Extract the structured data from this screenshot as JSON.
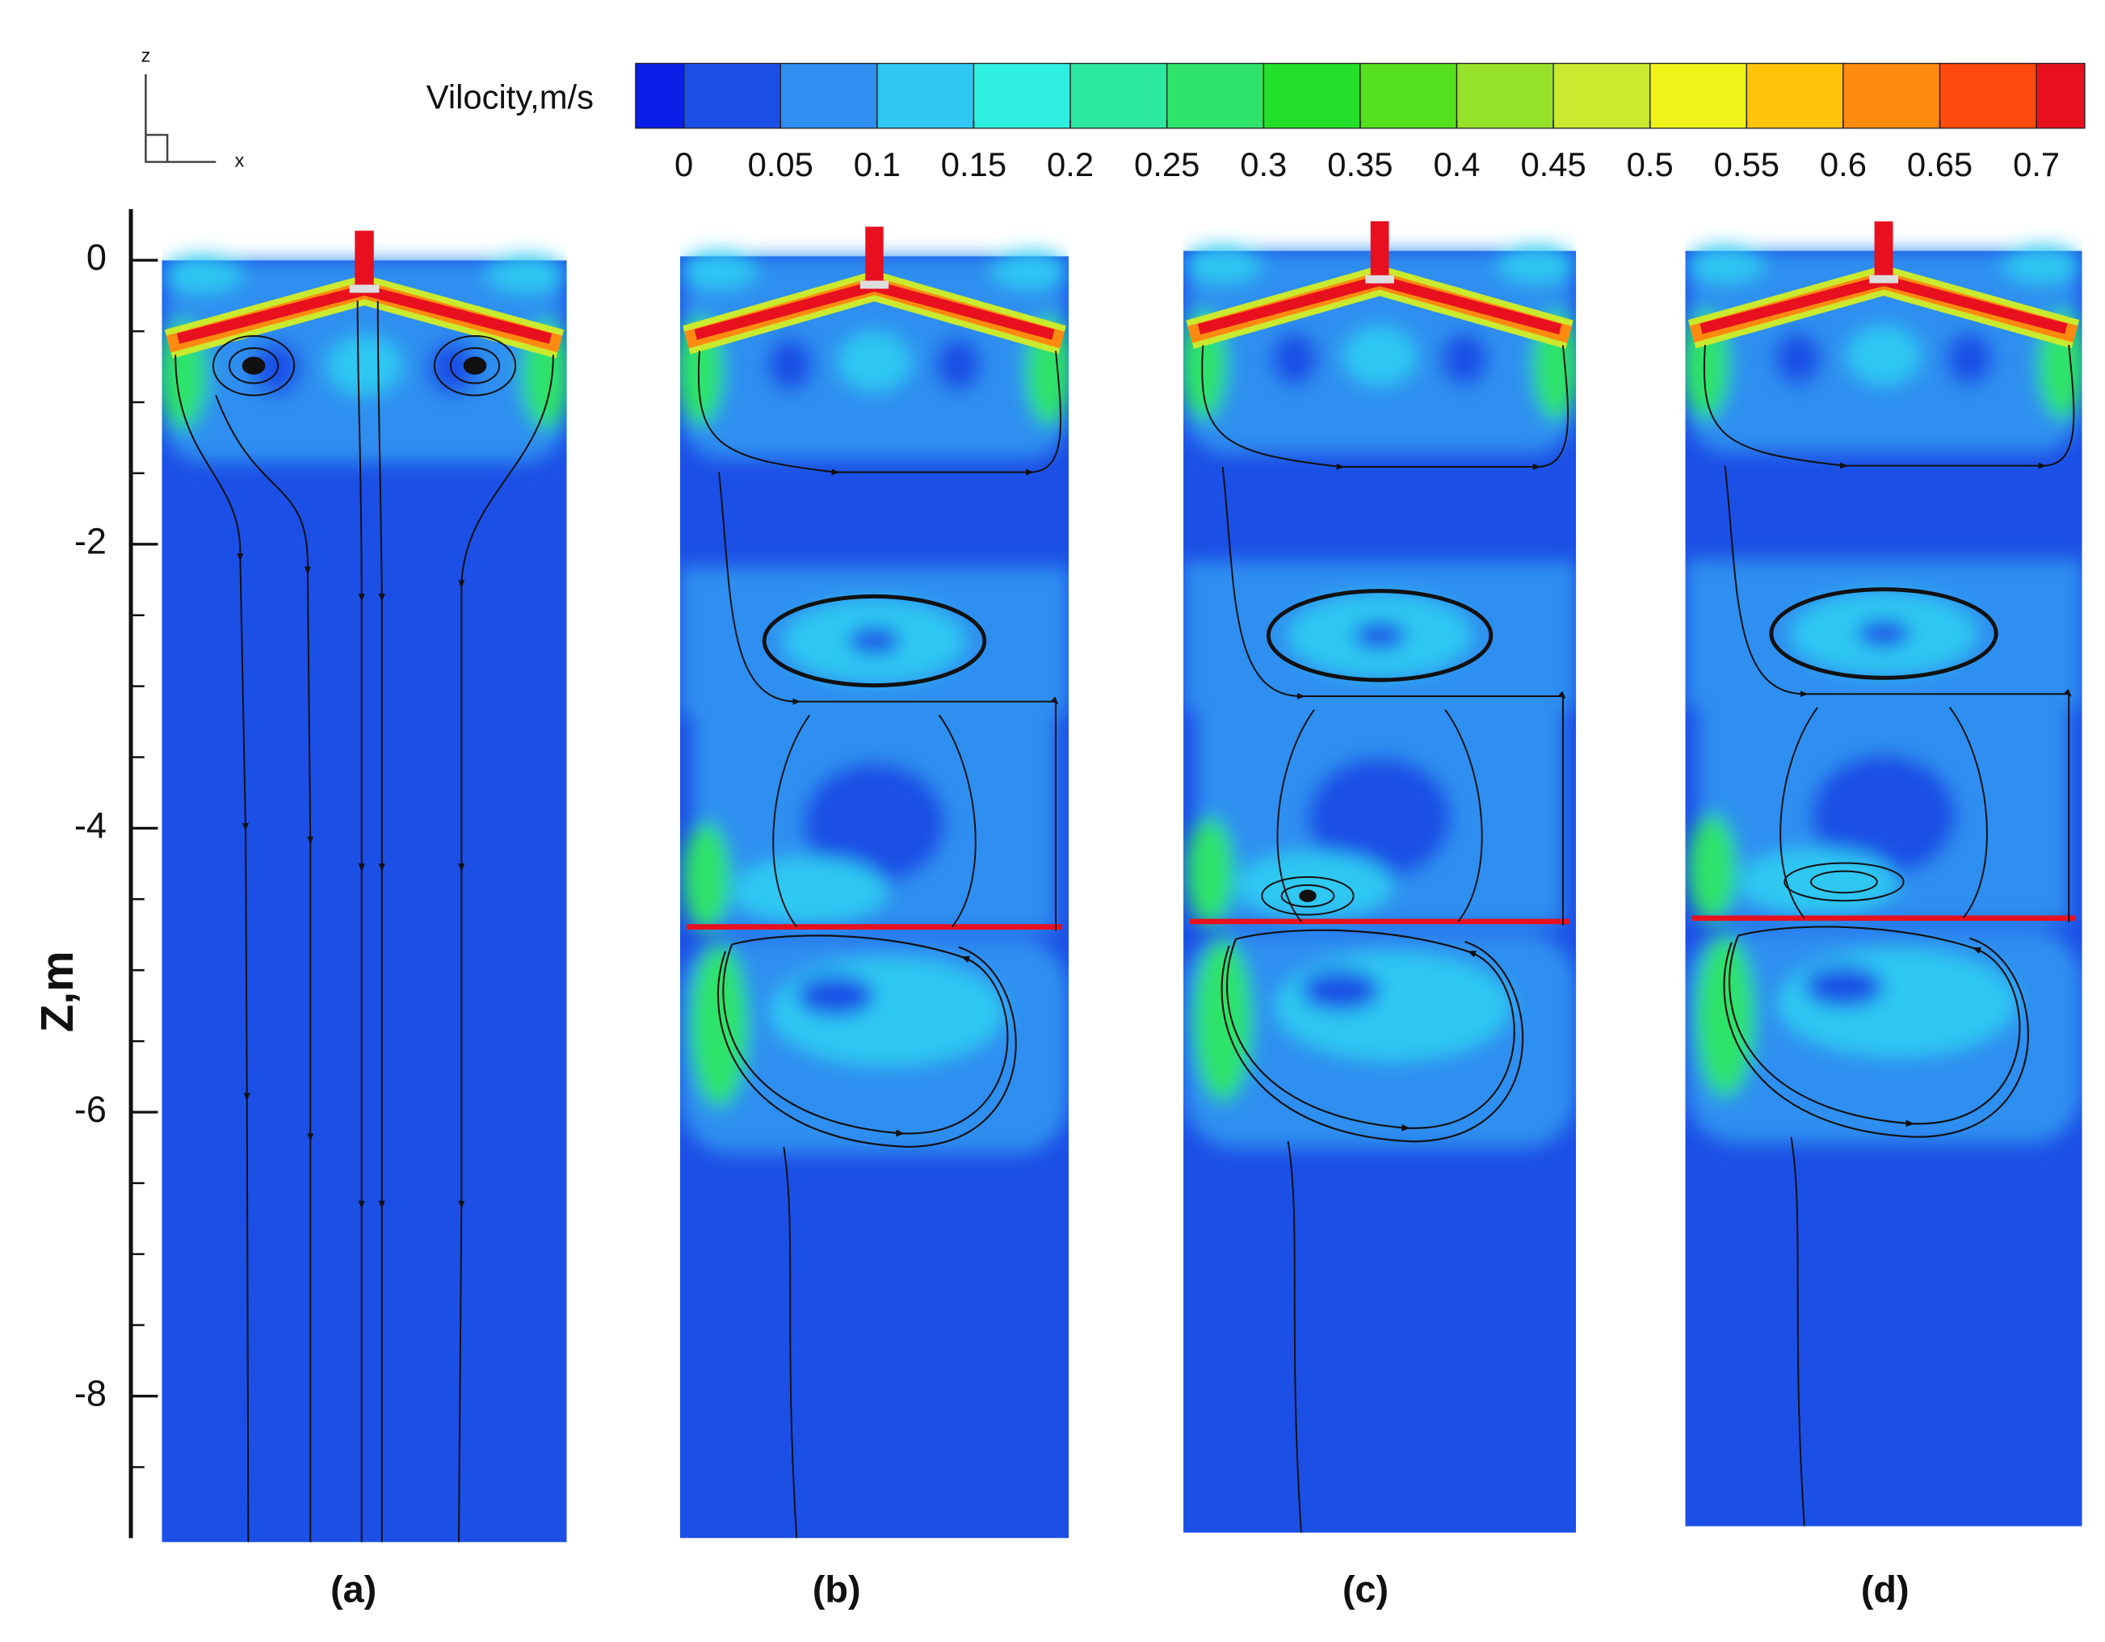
{
  "chart_data": {
    "type": "contour",
    "y_label": "Z,m",
    "ylim": [
      -9,
      0.36
    ],
    "yticks": [
      0,
      -2,
      -4,
      -6,
      -8
    ],
    "yminorticks": [
      -0.5,
      -1,
      -1.5,
      -2.5,
      -3,
      -3.5,
      -4.5,
      -5,
      -5.5,
      -6.5,
      -7,
      -7.5,
      -8.5
    ],
    "colorbar": {
      "label": "Vilocity,m/s",
      "lim": [
        -0.025,
        0.725
      ],
      "ticks": [
        0,
        0.05,
        0.1,
        0.15,
        0.2,
        0.25,
        0.3,
        0.35,
        0.4,
        0.45,
        0.5,
        0.55,
        0.6,
        0.65,
        0.7
      ],
      "colors": [
        "#0a1ee8",
        "#1c4fe6",
        "#2f8ff0",
        "#2ec8f2",
        "#2ff0e0",
        "#2de8a0",
        "#2ee36a",
        "#22e02a",
        "#55e01e",
        "#96e22a",
        "#c9ea2e",
        "#f0f21a",
        "#ffc40a",
        "#ff8a10",
        "#ff4a0e",
        "#e8101e"
      ]
    },
    "triad_labels": [
      "z",
      "x"
    ],
    "panels": [
      "(a)",
      "(b)",
      "(c)",
      "(d)"
    ]
  }
}
